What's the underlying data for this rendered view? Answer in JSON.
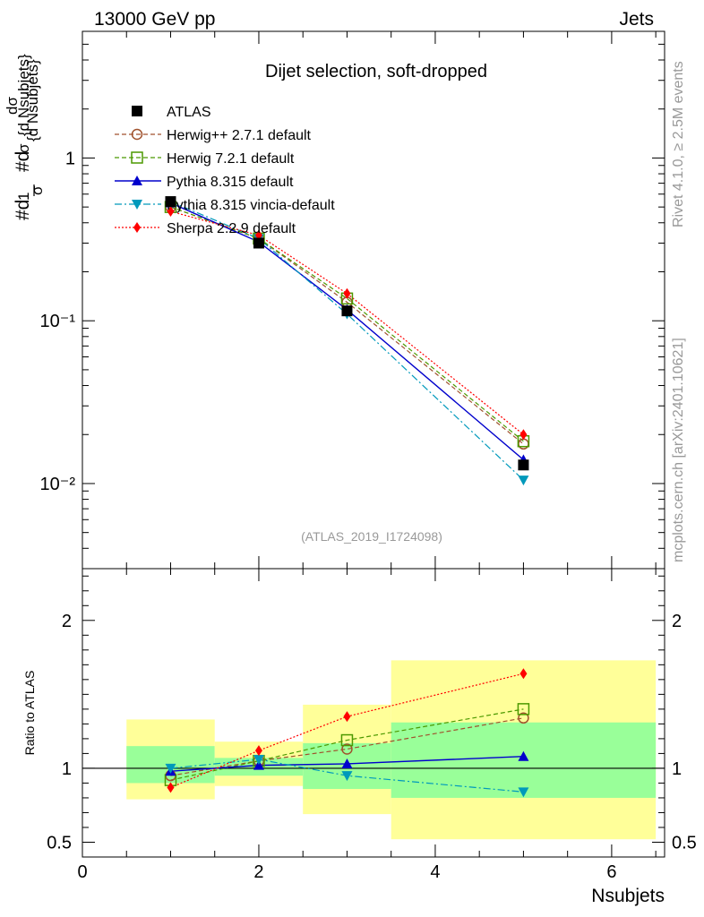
{
  "header": {
    "left": "13000 GeV pp",
    "right": "Jets"
  },
  "side_labels": {
    "rivet": "Rivet 4.1.0, ≥ 2.5M events",
    "mcplots": "mcplots.cern.ch [arXiv:2401.10621]"
  },
  "chart_data": [
    {
      "type": "line",
      "panel": "main",
      "title": "Dijet selection, soft-dropped",
      "watermark": "(ATLAS_2019_I1724098)",
      "ylabel": "#d1σ #dσ{d Nsubjets}",
      "yscale": "log",
      "ylim": [
        0.003,
        6
      ],
      "xlim": [
        0,
        6.6
      ],
      "ytick_labels": [
        "10⁻²",
        "10⁻¹",
        "1"
      ],
      "legend_position": "top-left",
      "x": [
        1,
        2,
        3,
        5
      ],
      "series": [
        {
          "name": "ATLAS",
          "values": [
            0.54,
            0.3,
            0.115,
            0.013
          ],
          "color": "#000000",
          "marker": "square"
        },
        {
          "name": "Herwig++ 2.7.1 default",
          "values": [
            0.5,
            0.32,
            0.13,
            0.0175
          ],
          "color": "#a0522d",
          "marker": "circle-open"
        },
        {
          "name": "Herwig 7.2.1 default",
          "values": [
            0.5,
            0.32,
            0.137,
            0.0182
          ],
          "color": "#4c9900",
          "marker": "square-open"
        },
        {
          "name": "Pythia 8.315 default",
          "values": [
            0.53,
            0.305,
            0.117,
            0.014
          ],
          "color": "#0000cc",
          "marker": "triangle-up"
        },
        {
          "name": "Pythia 8.315 vincia-default",
          "values": [
            0.54,
            0.32,
            0.11,
            0.0105
          ],
          "color": "#0099bb",
          "marker": "triangle-down"
        },
        {
          "name": "Sherpa 2.2.9 default",
          "values": [
            0.47,
            0.335,
            0.147,
            0.02
          ],
          "color": "#ff0000",
          "marker": "diamond"
        }
      ]
    },
    {
      "type": "line",
      "panel": "ratio",
      "xlabel": "Nsubjets",
      "ylabel": "Ratio to ATLAS",
      "ylim": [
        0.4,
        2.35
      ],
      "xlim": [
        0,
        6.6
      ],
      "xtick_labels": [
        "0",
        "2",
        "4",
        "6"
      ],
      "ytick_labels": [
        "0.5",
        "1",
        "2"
      ],
      "reference_line": 1,
      "bands": [
        {
          "x0": 0.5,
          "x1": 1.5,
          "stat_low": 0.9,
          "stat_high": 1.15,
          "total_low": 0.79,
          "total_high": 1.33
        },
        {
          "x0": 1.5,
          "x1": 2.5,
          "stat_low": 0.95,
          "stat_high": 1.07,
          "total_low": 0.88,
          "total_high": 1.18
        },
        {
          "x0": 2.5,
          "x1": 3.5,
          "stat_low": 0.86,
          "stat_high": 1.17,
          "total_low": 0.69,
          "total_high": 1.43
        },
        {
          "x0": 3.5,
          "x1": 6.5,
          "stat_low": 0.8,
          "stat_high": 1.31,
          "total_low": 0.52,
          "total_high": 1.73
        }
      ],
      "x": [
        1,
        2,
        3,
        5
      ],
      "series": [
        {
          "name": "Herwig++ 2.7.1 default",
          "values": [
            0.95,
            1.05,
            1.13,
            1.34
          ]
        },
        {
          "name": "Herwig 7.2.1 default",
          "values": [
            0.92,
            1.05,
            1.19,
            1.4
          ]
        },
        {
          "name": "Pythia 8.315 default",
          "values": [
            0.98,
            1.02,
            1.03,
            1.08
          ]
        },
        {
          "name": "Pythia 8.315 vincia-default",
          "values": [
            1.0,
            1.06,
            0.95,
            0.84
          ]
        },
        {
          "name": "Sherpa 2.2.9 default",
          "values": [
            0.87,
            1.12,
            1.35,
            1.64
          ]
        }
      ]
    }
  ]
}
